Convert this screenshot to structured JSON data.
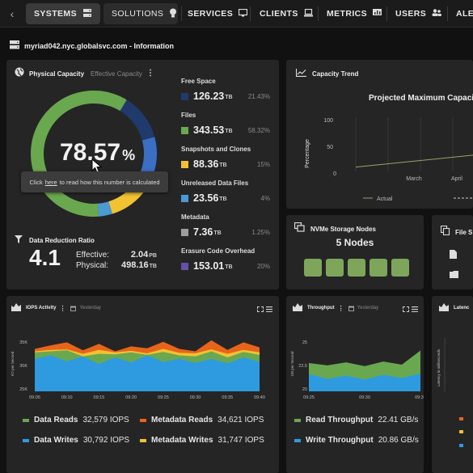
{
  "nav": {
    "tabs": [
      {
        "label": "SYSTEMS",
        "icon": "server-icon"
      },
      {
        "label": "SOLUTIONS",
        "icon": "lightbulb-icon"
      },
      {
        "label": "SERVICES",
        "icon": "monitor-icon"
      },
      {
        "label": "CLIENTS",
        "icon": "laptop-icon"
      },
      {
        "label": "METRICS",
        "icon": "chat-chart-icon"
      },
      {
        "label": "USERS",
        "icon": "users-icon"
      },
      {
        "label": "ALE",
        "icon": ""
      }
    ],
    "active": "SYSTEMS"
  },
  "page": {
    "title": "myriad042.nyc.globalsvc.com - Information"
  },
  "capacity": {
    "tab_physical": "Physical Capacity",
    "tab_effective": "Effective Capacity",
    "percent_value": "78.57",
    "percent_sign": "%",
    "tooltip_prefix": "Click",
    "tooltip_link": "here",
    "tooltip_suffix": "to read how this number is calculated",
    "rows": [
      {
        "label": "Free Space",
        "value": "126.23",
        "unit": "TB",
        "pct": "21.43%",
        "color": "#1f3a6b"
      },
      {
        "label": "Files",
        "value": "343.53",
        "unit": "TB",
        "pct": "58.32%",
        "color": "#6aa84f"
      },
      {
        "label": "Snapshots and Clones",
        "value": "88.36",
        "unit": "TB",
        "pct": "15%",
        "color": "#f1c232"
      },
      {
        "label": "Unreleased Data Files",
        "value": "23.56",
        "unit": "TB",
        "pct": "4%",
        "color": "#4a9ad4"
      },
      {
        "label": "Metadata",
        "value": "7.36",
        "unit": "TB",
        "pct": "1.25%",
        "color": "#9e9e9e"
      },
      {
        "label": "Erasure Code Overhead",
        "value": "153.01",
        "unit": "TB",
        "pct": "20%",
        "color": "#674ea7"
      }
    ],
    "donut": [
      {
        "name": "Free Space",
        "value": 21.43,
        "color": "#1f3a6b"
      },
      {
        "name": "Free Space (blue)",
        "value": 0,
        "color": "#3a6fc4"
      },
      {
        "name": "Files",
        "value": 58.32,
        "color": "#6aa84f"
      },
      {
        "name": "Snapshots and Clones",
        "value": 15,
        "color": "#f1c232"
      },
      {
        "name": "Unreleased Data Files",
        "value": 4,
        "color": "#4a9ad4"
      },
      {
        "name": "Metadata",
        "value": 1.25,
        "color": "#9e9e9e"
      }
    ]
  },
  "reduction": {
    "title": "Data Reduction Ratio",
    "ratio": "4.1",
    "effective_label": "Effective:",
    "effective_value": "2.04",
    "effective_unit": "PB",
    "physical_label": "Physical:",
    "physical_value": "498.16",
    "physical_unit": "TB"
  },
  "trend": {
    "title": "Capacity Trend",
    "chart_title": "Projected Maximum Capaci",
    "ylabel": "Percentage",
    "yticks": [
      "100",
      "50",
      "0"
    ],
    "xticks": [
      "March",
      "April"
    ],
    "legend_actual": "Actual"
  },
  "nvme": {
    "title": "NVMe Storage Nodes",
    "count_label": "5 Nodes",
    "nodes": 5
  },
  "files_panel": {
    "title": "File S"
  },
  "iops": {
    "title": "IOPS Activity",
    "range": "Yesterday",
    "ylabel": "I/O per Second",
    "yticks": [
      "35K",
      "30K",
      "25K"
    ],
    "xticks": [
      "09:05",
      "09:10",
      "09:15",
      "09:20",
      "09:25",
      "09:30",
      "09:35",
      "09:40"
    ],
    "legend": [
      {
        "label": "Data Reads",
        "value": "32,579 IOPS",
        "color": "#6aa84f"
      },
      {
        "label": "Metadata Reads",
        "value": "34,621 IOPS",
        "color": "#e8641b"
      },
      {
        "label": "Data Writes",
        "value": "30,792 IOPS",
        "color": "#2e9be0"
      },
      {
        "label": "Metadata Writes",
        "value": "31,747 IOPS",
        "color": "#f1c232"
      }
    ]
  },
  "throughput": {
    "title": "Throughput",
    "range": "Yesterday",
    "ylabel": "GB per Second",
    "yticks": [
      "25",
      "22.5",
      "20"
    ],
    "xticks": [
      "09:25",
      "09:30",
      "09:35"
    ],
    "legend": [
      {
        "label": "Read Throughput",
        "value": "22.41 GB/s",
        "color": "#6aa84f"
      },
      {
        "label": "Write Throughput",
        "value": "20.86 GB/s",
        "color": "#2e9be0"
      }
    ]
  },
  "latency": {
    "title": "Latenc",
    "ylabel": "Latency in milliseconds"
  },
  "chart_data": [
    {
      "type": "area",
      "title": "IOPS Activity",
      "ylabel": "I/O per Second",
      "ylim": [
        25000,
        36000
      ],
      "x": [
        "09:05",
        "09:07",
        "09:10",
        "09:12",
        "09:15",
        "09:17",
        "09:20",
        "09:22",
        "09:25",
        "09:27",
        "09:30",
        "09:32",
        "09:35",
        "09:37",
        "09:40"
      ],
      "series": [
        {
          "name": "Metadata Reads",
          "color": "#e8641b",
          "values": [
            33500,
            34200,
            34800,
            33200,
            34500,
            33000,
            34000,
            33600,
            34900,
            33500,
            33000,
            35200,
            33300,
            34800,
            33800
          ]
        },
        {
          "name": "Metadata Writes",
          "color": "#f1c232",
          "values": [
            33000,
            33300,
            33400,
            32500,
            33300,
            32800,
            33100,
            32600,
            33500,
            32700,
            32600,
            33400,
            32500,
            33300,
            32800
          ]
        },
        {
          "name": "Data Reads",
          "color": "#6aa84f",
          "values": [
            32800,
            33000,
            33200,
            32000,
            32500,
            32400,
            32800,
            32300,
            32900,
            32200,
            32000,
            33000,
            31800,
            32900,
            32300
          ]
        },
        {
          "name": "Data Writes",
          "color": "#2e9be0",
          "values": [
            31500,
            32200,
            31000,
            32000,
            30500,
            31800,
            30800,
            32200,
            30900,
            31500,
            30700,
            31500,
            30600,
            31800,
            30900
          ]
        }
      ]
    },
    {
      "type": "area",
      "title": "Throughput",
      "ylabel": "GB per Second",
      "ylim": [
        19000,
        26000
      ],
      "x": [
        "09:23",
        "09:25",
        "09:27",
        "09:30",
        "09:32",
        "09:35",
        "09:37"
      ],
      "series": [
        {
          "name": "Read Throughput",
          "color": "#6aa84f",
          "values": [
            22.6,
            22.3,
            22.7,
            22.2,
            22.8,
            22.4,
            24.2
          ]
        },
        {
          "name": "Write Throughput",
          "color": "#2e9be0",
          "values": [
            21.2,
            20.6,
            21.0,
            20.5,
            21.1,
            20.7,
            21.3
          ]
        }
      ]
    },
    {
      "type": "line",
      "title": "Projected Maximum Capaci",
      "ylabel": "Percentage",
      "ylim": [
        0,
        100
      ],
      "x": [
        "March",
        "April"
      ],
      "series": [
        {
          "name": "Actual",
          "values": [
            8,
            30
          ]
        }
      ]
    }
  ]
}
